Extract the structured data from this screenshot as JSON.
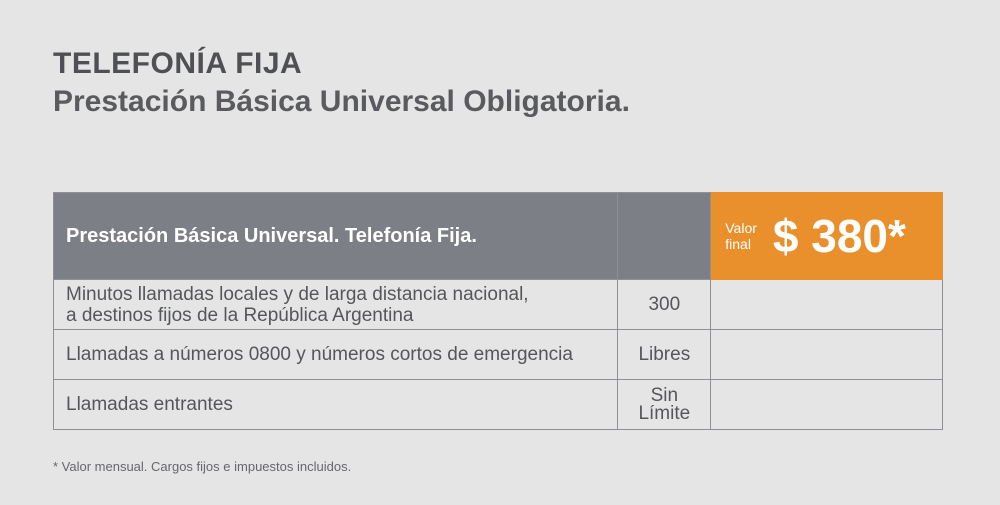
{
  "title": "TELEFONÍA FIJA",
  "subtitle": "Prestación Básica Universal Obligatoria.",
  "table": {
    "header": {
      "label": "Prestación Básica Universal. Telefonía Fija.",
      "price_caption_1": "Valor",
      "price_caption_2": "final",
      "price": "$ 380*"
    },
    "rows": [
      {
        "line1": "Minutos llamadas locales y de larga distancia nacional,",
        "line2": "a destinos fijos de la República Argentina",
        "value1": "300",
        "value2": ""
      },
      {
        "line1": "Llamadas a números 0800 y números cortos de emergencia",
        "line2": "",
        "value1": "Libres",
        "value2": ""
      },
      {
        "line1": "Llamadas entrantes",
        "line2": "",
        "value1": "Sin",
        "value2": "Límite"
      }
    ]
  },
  "footnote": "* Valor mensual. Cargos fijos e impuestos incluidos.",
  "colors": {
    "header": "#7d7f87",
    "accent": "#e98f2c",
    "background": "#e6e5e6"
  }
}
